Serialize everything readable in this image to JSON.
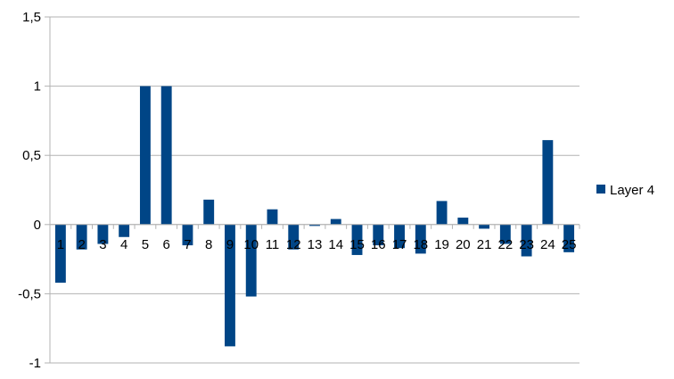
{
  "chart_data": {
    "type": "bar",
    "categories": [
      "1",
      "2",
      "3",
      "4",
      "5",
      "6",
      "7",
      "8",
      "9",
      "10",
      "11",
      "12",
      "13",
      "14",
      "15",
      "16",
      "17",
      "18",
      "19",
      "20",
      "21",
      "22",
      "23",
      "24",
      "25"
    ],
    "series": [
      {
        "name": "Layer 4",
        "color": "#004586",
        "values": [
          -0.42,
          -0.18,
          -0.14,
          -0.09,
          1.0,
          1.0,
          -0.15,
          0.18,
          -0.88,
          -0.52,
          0.11,
          -0.18,
          -0.01,
          0.04,
          -0.22,
          -0.15,
          -0.17,
          -0.21,
          0.17,
          0.05,
          -0.03,
          -0.14,
          -0.23,
          0.61,
          -0.2
        ]
      }
    ],
    "ylim": [
      -1,
      1.5
    ],
    "yticks": [
      -1,
      -0.5,
      0,
      0.5,
      1,
      1.5
    ],
    "ytick_labels": [
      "-1",
      "-0,5",
      "0",
      "0,5",
      "1",
      "1,5"
    ],
    "grid": true,
    "legend_position": "right",
    "title": "",
    "xlabel": "",
    "ylabel": ""
  }
}
